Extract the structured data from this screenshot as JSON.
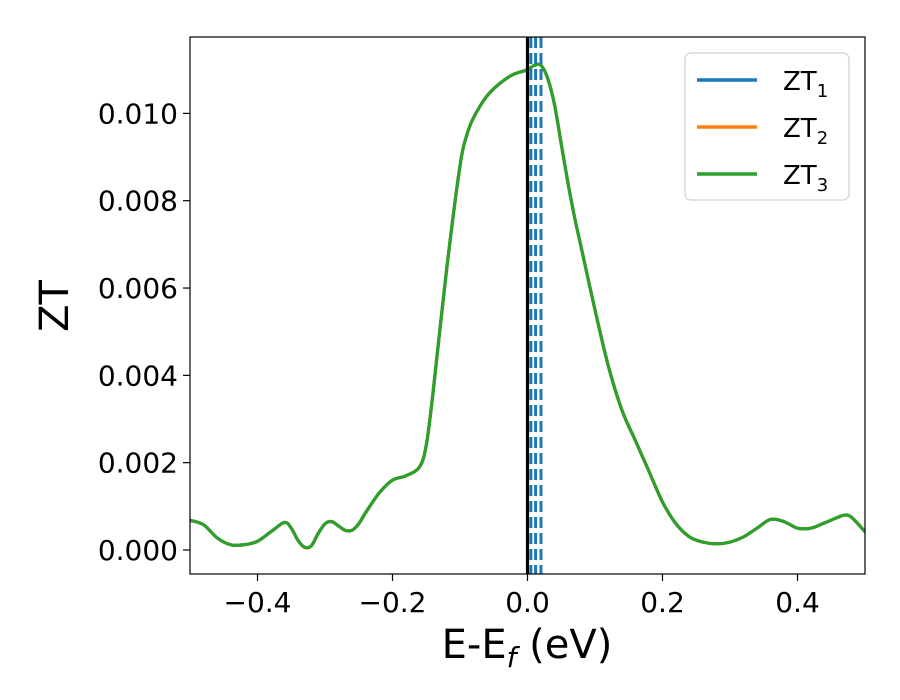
{
  "chart_data": {
    "type": "line",
    "xlabel": {
      "main": "E-E",
      "sub": "f",
      "suffix": " (eV)"
    },
    "ylabel": "ZT",
    "xlim": [
      -0.5,
      0.5
    ],
    "ylim": [
      -0.00055,
      0.01175
    ],
    "x_ticks": [
      -0.4,
      -0.2,
      0.0,
      0.2,
      0.4
    ],
    "x_tick_labels": [
      "−0.4",
      "−0.2",
      "0.0",
      "0.2",
      "0.4"
    ],
    "y_ticks": [
      0.0,
      0.002,
      0.004,
      0.006,
      0.008,
      0.01
    ],
    "y_tick_labels": [
      "0.000",
      "0.002",
      "0.004",
      "0.006",
      "0.008",
      "0.010"
    ],
    "grid": false,
    "legend_position": "top-right",
    "vertical_lines": [
      {
        "x": 0.0,
        "style": "solid",
        "color": "#000000"
      },
      {
        "x": 0.005,
        "style": "dashed",
        "color": "#1f77b4"
      },
      {
        "x": 0.012,
        "style": "dashed",
        "color": "#1f77b4"
      },
      {
        "x": 0.02,
        "style": "dashed",
        "color": "#1f77b4"
      }
    ],
    "x": [
      -0.5,
      -0.48,
      -0.46,
      -0.44,
      -0.42,
      -0.4,
      -0.38,
      -0.36,
      -0.35,
      -0.34,
      -0.33,
      -0.32,
      -0.31,
      -0.3,
      -0.29,
      -0.28,
      -0.27,
      -0.26,
      -0.25,
      -0.24,
      -0.22,
      -0.2,
      -0.18,
      -0.16,
      -0.15,
      -0.14,
      -0.12,
      -0.1,
      -0.09,
      -0.08,
      -0.06,
      -0.04,
      -0.02,
      0.0,
      0.01,
      0.02,
      0.03,
      0.04,
      0.05,
      0.06,
      0.07,
      0.08,
      0.1,
      0.12,
      0.14,
      0.16,
      0.18,
      0.2,
      0.22,
      0.24,
      0.26,
      0.28,
      0.3,
      0.32,
      0.34,
      0.36,
      0.38,
      0.4,
      0.42,
      0.44,
      0.46,
      0.47,
      0.48,
      0.5
    ],
    "series": [
      {
        "name": "ZT",
        "sub": "1",
        "color": "#1f77b4",
        "values": [
          0.00068,
          0.00058,
          0.00028,
          0.00012,
          0.00012,
          0.0002,
          0.00042,
          0.00063,
          0.0005,
          0.00022,
          6e-05,
          0.0001,
          0.00038,
          0.0006,
          0.00065,
          0.00055,
          0.00045,
          0.00045,
          0.0006,
          0.00085,
          0.0013,
          0.0016,
          0.0017,
          0.0019,
          0.0024,
          0.0036,
          0.0064,
          0.0088,
          0.0095,
          0.0099,
          0.0104,
          0.0107,
          0.0109,
          0.011,
          0.0111,
          0.0111,
          0.0108,
          0.0102,
          0.0093,
          0.0084,
          0.0076,
          0.0069,
          0.0055,
          0.0042,
          0.0032,
          0.0025,
          0.0018,
          0.0011,
          0.0006,
          0.0003,
          0.00018,
          0.00014,
          0.00018,
          0.0003,
          0.0005,
          0.0007,
          0.00065,
          0.0005,
          0.0005,
          0.00062,
          0.00075,
          0.0008,
          0.00075,
          0.00042
        ]
      },
      {
        "name": "ZT",
        "sub": "2",
        "color": "#ff7f0e",
        "values": [
          0.00068,
          0.00058,
          0.00028,
          0.00012,
          0.00012,
          0.0002,
          0.00042,
          0.00063,
          0.0005,
          0.00022,
          6e-05,
          0.0001,
          0.00038,
          0.0006,
          0.00065,
          0.00055,
          0.00045,
          0.00045,
          0.0006,
          0.00085,
          0.0013,
          0.0016,
          0.0017,
          0.0019,
          0.0024,
          0.0036,
          0.0064,
          0.0088,
          0.0095,
          0.0099,
          0.0104,
          0.0107,
          0.0109,
          0.011,
          0.0111,
          0.0111,
          0.0108,
          0.0102,
          0.0093,
          0.0084,
          0.0076,
          0.0069,
          0.0055,
          0.0042,
          0.0032,
          0.0025,
          0.0018,
          0.0011,
          0.0006,
          0.0003,
          0.00018,
          0.00014,
          0.00018,
          0.0003,
          0.0005,
          0.0007,
          0.00065,
          0.0005,
          0.0005,
          0.00062,
          0.00075,
          0.0008,
          0.00075,
          0.00042
        ]
      },
      {
        "name": "ZT",
        "sub": "3",
        "color": "#2ca02c",
        "values": [
          0.00068,
          0.00058,
          0.00028,
          0.00012,
          0.00012,
          0.0002,
          0.00042,
          0.00063,
          0.0005,
          0.00022,
          6e-05,
          0.0001,
          0.00038,
          0.0006,
          0.00065,
          0.00055,
          0.00045,
          0.00045,
          0.0006,
          0.00085,
          0.0013,
          0.0016,
          0.0017,
          0.0019,
          0.0024,
          0.0036,
          0.0064,
          0.0088,
          0.0095,
          0.0099,
          0.0104,
          0.0107,
          0.0109,
          0.011,
          0.0111,
          0.0111,
          0.0108,
          0.0102,
          0.0093,
          0.0084,
          0.0076,
          0.0069,
          0.0055,
          0.0042,
          0.0032,
          0.0025,
          0.0018,
          0.0011,
          0.0006,
          0.0003,
          0.00018,
          0.00014,
          0.00018,
          0.0003,
          0.0005,
          0.0007,
          0.00065,
          0.0005,
          0.0005,
          0.00062,
          0.00075,
          0.0008,
          0.00075,
          0.00042
        ]
      }
    ]
  }
}
